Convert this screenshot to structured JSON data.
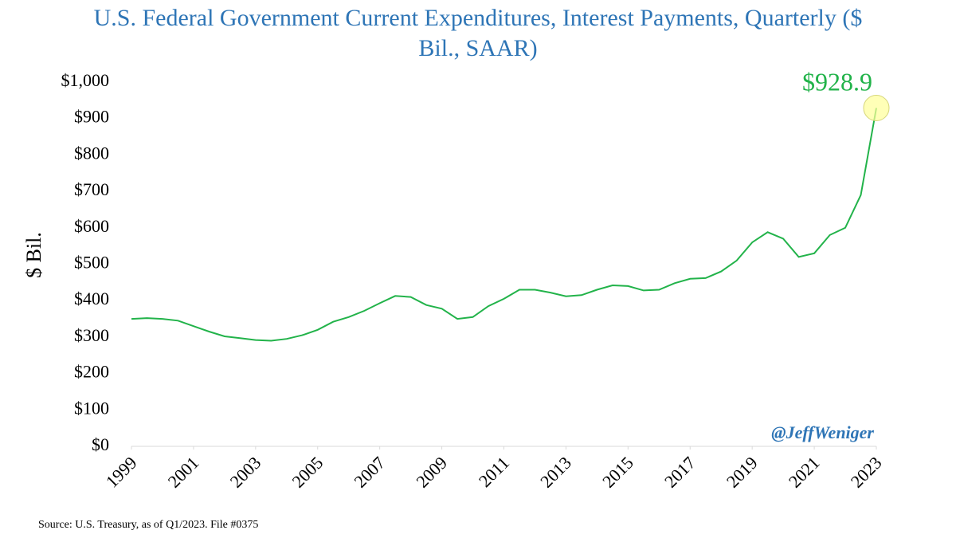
{
  "chart_data": {
    "type": "line",
    "title": "U.S. Federal Government Current Expenditures, Interest Payments, Quarterly ($ Bil., SAAR)",
    "y_label": "$ Bil.",
    "source": "Source: U.S. Treasury, as of Q1/2023. File #0375",
    "watermark": "@JeffWeniger",
    "color": "#22b34a",
    "x": [
      1999,
      1999.5,
      2000,
      2000.5,
      2001,
      2001.5,
      2002,
      2002.5,
      2003,
      2003.5,
      2004,
      2004.5,
      2005,
      2005.5,
      2006,
      2006.5,
      2007,
      2007.5,
      2008,
      2008.5,
      2009,
      2009.5,
      2010,
      2010.5,
      2011,
      2011.5,
      2012,
      2012.5,
      2013,
      2013.5,
      2014,
      2014.5,
      2015,
      2015.5,
      2016,
      2016.5,
      2017,
      2017.5,
      2018,
      2018.5,
      2019,
      2019.5,
      2020,
      2020.5,
      2021,
      2021.5,
      2022,
      2022.5,
      2023
    ],
    "values": [
      350,
      352,
      350,
      345,
      330,
      315,
      302,
      297,
      292,
      290,
      295,
      305,
      320,
      342,
      355,
      372,
      393,
      413,
      410,
      388,
      378,
      350,
      355,
      385,
      405,
      430,
      430,
      422,
      412,
      415,
      430,
      442,
      440,
      428,
      430,
      448,
      460,
      462,
      480,
      510,
      560,
      588,
      570,
      520,
      530,
      580,
      600,
      690,
      928.9
    ],
    "value_labels": [
      null,
      null,
      null,
      null,
      null,
      null,
      null,
      null,
      null,
      null,
      null,
      null,
      null,
      null,
      null,
      null,
      null,
      null,
      null,
      null,
      null,
      null,
      null,
      null,
      null,
      null,
      null,
      null,
      null,
      null,
      null,
      null,
      null,
      null,
      null,
      null,
      null,
      null,
      null,
      null,
      null,
      null,
      null,
      null,
      null,
      null,
      null,
      null,
      "$928.9"
    ],
    "xlim": [
      1999,
      2023
    ],
    "xticks": [
      1999,
      2001,
      2003,
      2005,
      2007,
      2009,
      2011,
      2013,
      2015,
      2017,
      2019,
      2021,
      2023
    ],
    "ylim": [
      0,
      1000
    ],
    "yticks": [
      {
        "value": 0,
        "label": "$0"
      },
      {
        "value": 100,
        "label": "$100"
      },
      {
        "value": 200,
        "label": "$200"
      },
      {
        "value": 300,
        "label": "$300"
      },
      {
        "value": 400,
        "label": "$400"
      },
      {
        "value": 500,
        "label": "$500"
      },
      {
        "value": 600,
        "label": "$600"
      },
      {
        "value": 700,
        "label": "$700"
      },
      {
        "value": 800,
        "label": "$800"
      },
      {
        "value": 900,
        "label": "$900"
      },
      {
        "value": 1000,
        "label": "$1,000"
      }
    ],
    "grid": false
  }
}
